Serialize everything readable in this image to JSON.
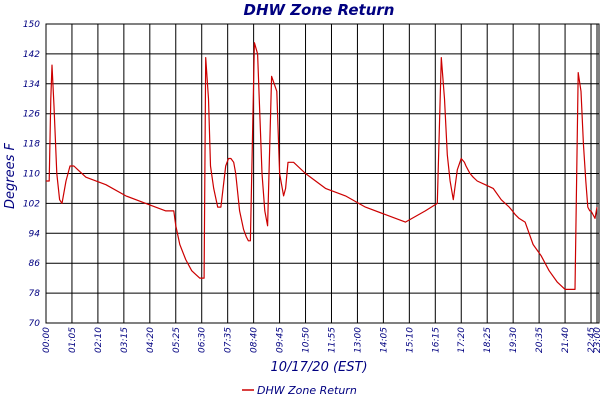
{
  "chart_data": {
    "type": "line",
    "title": "DHW Zone Return",
    "xlabel": "10/17/20 (EST)",
    "ylabel": "Degrees F",
    "ylim": [
      70,
      150
    ],
    "y_ticks": [
      "70",
      "78",
      "86",
      "94",
      "102",
      "110",
      "118",
      "126",
      "134",
      "142",
      "150"
    ],
    "x_tick_labels": [
      "00:00",
      "01:05",
      "02:10",
      "03:15",
      "04:20",
      "05:25",
      "06:30",
      "07:35",
      "08:40",
      "09:45",
      "10:50",
      "11:55",
      "13:00",
      "14:05",
      "15:10",
      "16:15",
      "17:20",
      "18:25",
      "19:30",
      "20:35",
      "21:40",
      "22:45",
      "23:00"
    ],
    "x_tick_minutes": [
      0,
      65,
      130,
      195,
      260,
      325,
      390,
      455,
      520,
      585,
      650,
      715,
      780,
      845,
      910,
      975,
      1040,
      1105,
      1170,
      1235,
      1300,
      1365,
      1380
    ],
    "x_range_minutes": [
      0,
      1385
    ],
    "grid": true,
    "legend_position": "bottom-center",
    "series": [
      {
        "name": "DHW Zone Return",
        "color": "#cc0000",
        "x_minutes": [
          0,
          8,
          12,
          15,
          20,
          27,
          34,
          40,
          50,
          60,
          70,
          80,
          100,
          150,
          200,
          250,
          300,
          320,
          325,
          335,
          350,
          365,
          375,
          385,
          396,
          400,
          407,
          412,
          420,
          430,
          438,
          450,
          457,
          463,
          470,
          475,
          485,
          495,
          502,
          507,
          512,
          522,
          530,
          541,
          548,
          555,
          565,
          578,
          585,
          595,
          600,
          606,
          620,
          650,
          700,
          750,
          800,
          850,
          900,
          950,
          980,
          990,
          998,
          1005,
          1012,
          1020,
          1030,
          1040,
          1048,
          1052,
          1057,
          1062,
          1070,
          1080,
          1100,
          1120,
          1140,
          1160,
          1168,
          1175,
          1185,
          1200,
          1220,
          1240,
          1260,
          1280,
          1300,
          1320,
          1325,
          1333,
          1340,
          1346,
          1352,
          1357,
          1362,
          1365,
          1370,
          1375,
          1380
        ],
        "values": [
          108,
          108,
          130,
          139,
          128,
          110,
          103,
          102,
          108,
          112,
          112,
          111,
          109,
          107,
          104,
          102,
          100,
          100,
          96,
          91,
          87,
          84,
          83,
          82,
          82,
          141,
          130,
          112,
          106,
          101,
          101,
          112,
          114,
          114,
          113,
          110,
          100,
          95,
          93,
          92,
          92,
          145,
          142,
          110,
          100,
          96,
          136,
          132,
          110,
          104,
          106,
          113,
          113,
          110,
          106,
          104,
          101,
          99,
          97,
          100,
          102,
          141,
          130,
          115,
          108,
          103,
          111,
          114,
          113,
          112,
          111,
          110,
          109,
          108,
          107,
          106,
          103,
          101,
          100,
          99,
          98,
          97,
          91,
          88,
          84,
          81,
          79,
          79,
          79,
          137,
          132,
          118,
          108,
          101,
          100,
          100,
          99,
          98,
          101
        ]
      }
    ]
  }
}
